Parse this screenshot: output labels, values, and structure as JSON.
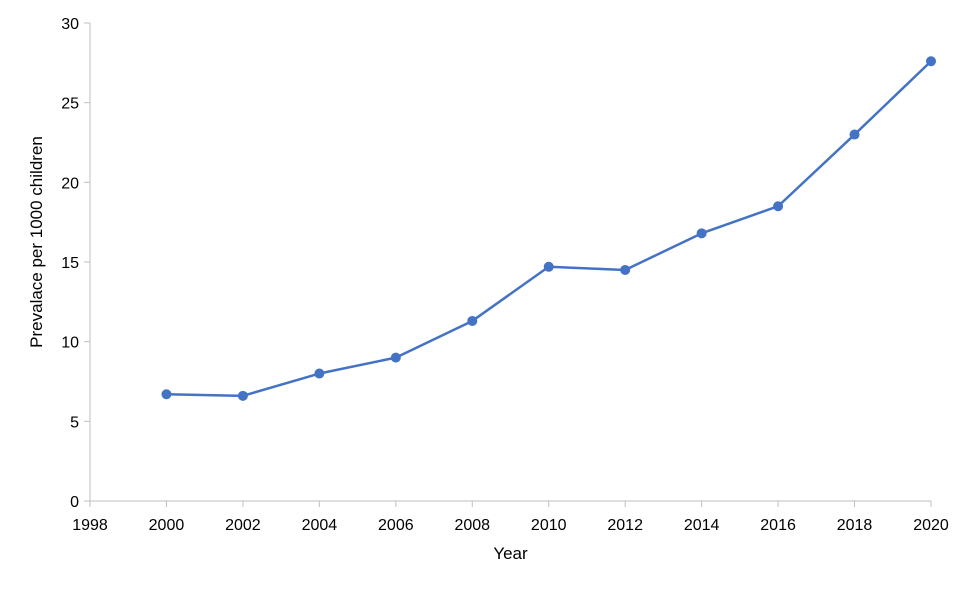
{
  "chart_data": {
    "type": "line",
    "title": "",
    "xlabel": "Year",
    "ylabel": "Prevalace per 1000 children",
    "xlim": [
      1998,
      2020
    ],
    "ylim": [
      0,
      30
    ],
    "x_ticks": [
      1998,
      2000,
      2002,
      2004,
      2006,
      2008,
      2010,
      2012,
      2014,
      2016,
      2018,
      2020
    ],
    "y_ticks": [
      0,
      5,
      10,
      15,
      20,
      25,
      30
    ],
    "grid": false,
    "legend": "none",
    "series": [
      {
        "color": "#4472C4",
        "x": [
          2000,
          2002,
          2004,
          2006,
          2008,
          2010,
          2012,
          2014,
          2016,
          2018,
          2020
        ],
        "y": [
          6.7,
          6.6,
          8.0,
          9.0,
          11.3,
          14.7,
          14.5,
          16.8,
          18.5,
          23.0,
          27.6
        ]
      }
    ]
  }
}
